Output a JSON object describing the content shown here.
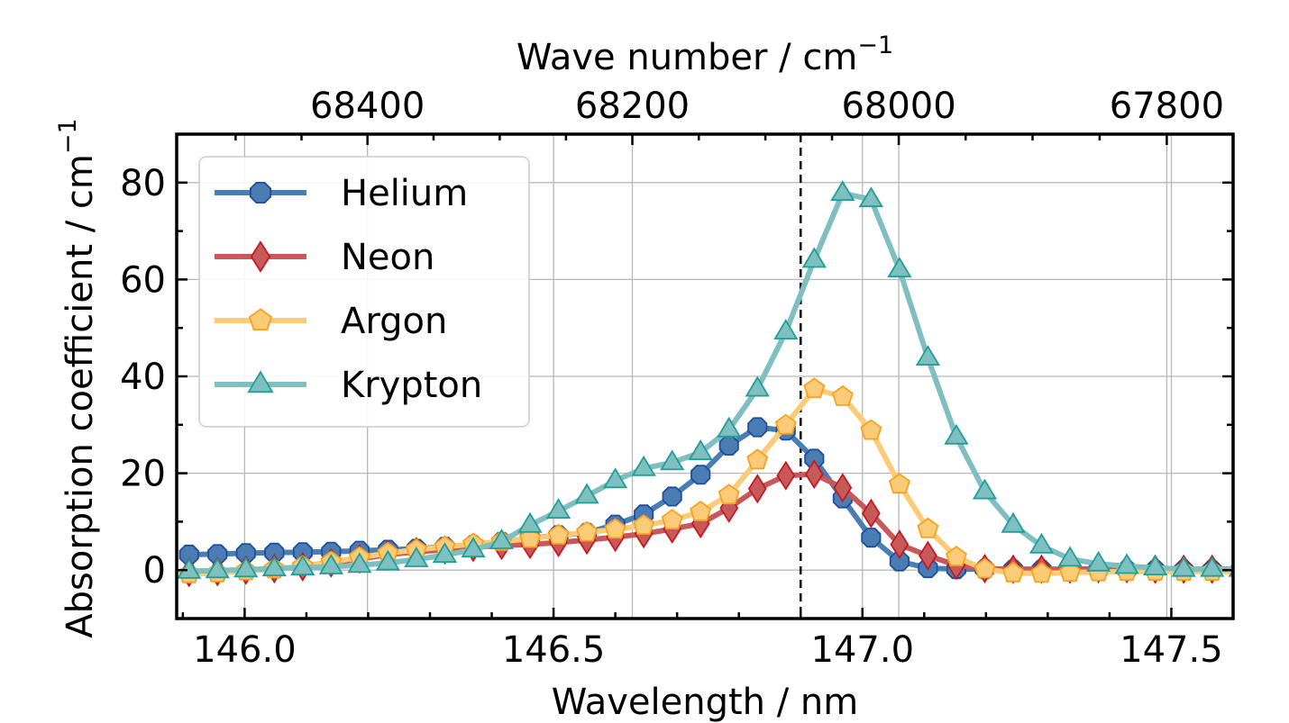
{
  "chart_data": {
    "type": "line",
    "xlabel": "Wavelength / nm",
    "x2label": "Wave number / cm",
    "x2label_sup": "−1",
    "ylabel": "Absorption coefficient / cm",
    "ylabel_sup": "−1",
    "xlim": [
      145.89,
      147.6
    ],
    "ylim": [
      -10,
      90
    ],
    "xticks": [
      146.0,
      146.5,
      147.0,
      147.5
    ],
    "xtick_labels": [
      "146.0",
      "146.5",
      "147.0",
      "147.5"
    ],
    "x2ticks": [
      68400,
      68200,
      68000,
      67800
    ],
    "x2tick_labels": [
      "68400",
      "68200",
      "68000",
      "67800"
    ],
    "yticks": [
      0,
      20,
      40,
      60,
      80
    ],
    "ytick_labels": [
      "0",
      "20",
      "40",
      "60",
      "80"
    ],
    "grid": true,
    "legend_position": "top-left",
    "vline_x": 146.9,
    "x": [
      145.91,
      145.956,
      146.002,
      146.048,
      146.094,
      146.14,
      146.186,
      146.232,
      146.278,
      146.324,
      146.37,
      146.416,
      146.462,
      146.508,
      146.554,
      146.6,
      146.646,
      146.692,
      146.738,
      146.784,
      146.83,
      146.876,
      146.922,
      146.968,
      147.014,
      147.06,
      147.106,
      147.152,
      147.198,
      147.244,
      147.29,
      147.336,
      147.382,
      147.428,
      147.474,
      147.52,
      147.566,
      147.612
    ],
    "series": [
      {
        "name": "Helium",
        "color": "#4a7db4",
        "edge": "#1f4e9a",
        "marker": "octagon",
        "values": [
          3.2,
          3.3,
          3.5,
          3.6,
          3.7,
          3.8,
          4.0,
          4.2,
          4.4,
          4.8,
          5.2,
          5.8,
          6.6,
          7.2,
          7.7,
          9.4,
          11.5,
          15.2,
          19.7,
          25.7,
          29.5,
          28.8,
          23.0,
          14.8,
          6.7,
          1.8,
          0.4,
          0.2,
          0.2,
          0.1,
          0.1,
          0.1,
          0.0,
          0.0,
          0.0,
          0.0,
          0.0,
          0.0
        ]
      },
      {
        "name": "Neon",
        "color": "#c7595b",
        "edge": "#c41a1f",
        "marker": "diamond",
        "values": [
          -0.5,
          -0.3,
          0.0,
          0.3,
          0.7,
          1.5,
          2.3,
          3.2,
          3.8,
          4.2,
          4.7,
          5.1,
          5.3,
          5.7,
          6.2,
          6.8,
          7.5,
          8.5,
          9.6,
          12.8,
          16.8,
          19.5,
          19.8,
          17.0,
          11.7,
          5.3,
          3.0,
          1.0,
          0.3,
          0.2,
          0.2,
          0.2,
          0.3,
          0.3,
          0.2,
          0.2,
          0.2,
          0.2
        ]
      },
      {
        "name": "Argon",
        "color": "#fccb78",
        "edge": "#f6a21f",
        "marker": "pentagon",
        "values": [
          -0.8,
          -0.6,
          -0.2,
          0.2,
          0.8,
          1.7,
          2.6,
          3.5,
          4.2,
          4.8,
          5.4,
          5.9,
          6.5,
          7.2,
          7.8,
          8.4,
          9.2,
          10.3,
          12.0,
          15.5,
          22.7,
          29.9,
          37.4,
          35.8,
          28.8,
          17.7,
          8.5,
          2.7,
          0.2,
          -0.6,
          -0.7,
          -0.5,
          -0.4,
          -0.3,
          -0.3,
          -0.3,
          -0.3,
          -0.3
        ]
      },
      {
        "name": "Krypton",
        "color": "#7fbfbf",
        "edge": "#1f9e9a",
        "marker": "triangle",
        "values": [
          -0.2,
          -0.1,
          0.1,
          0.3,
          0.5,
          0.7,
          1.0,
          1.5,
          2.2,
          3.1,
          4.2,
          5.9,
          9.3,
          12.2,
          15.3,
          18.5,
          21.0,
          22.2,
          24.3,
          29.0,
          37.4,
          49.2,
          64.0,
          77.8,
          76.5,
          62.0,
          43.8,
          27.5,
          16.2,
          9.3,
          5.0,
          2.3,
          1.3,
          0.8,
          0.5,
          0.2,
          0.2,
          0.2
        ]
      }
    ]
  }
}
